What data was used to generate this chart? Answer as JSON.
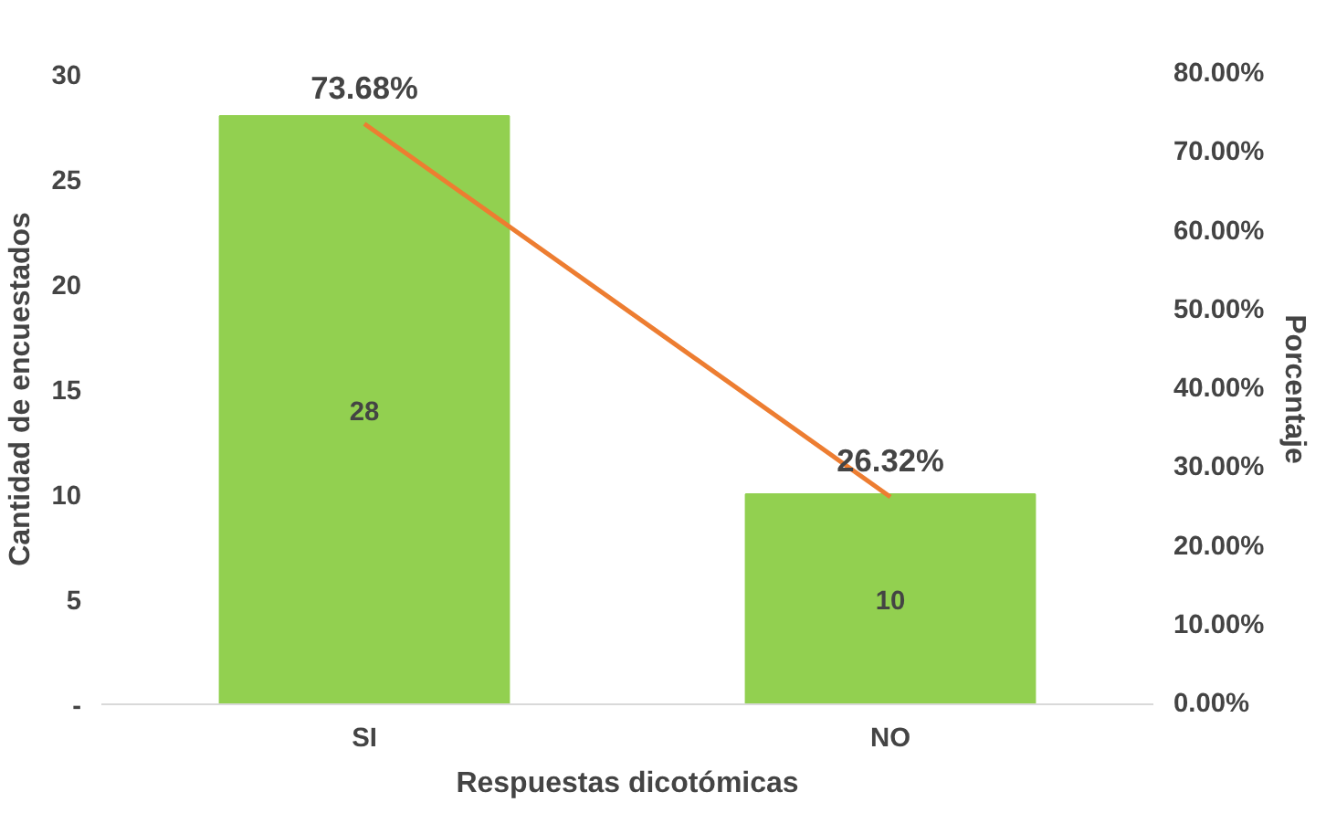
{
  "chart_data": {
    "type": "bar",
    "categories": [
      "SI",
      "NO"
    ],
    "xlabel": "Respuestas dicotómicas",
    "ylabel": "Cantidad de encuestados",
    "y2label": "Porcentaje",
    "series": [
      {
        "color": "#92d050",
        "values": [
          28,
          10
        ],
        "value_labels": [
          "28",
          "10"
        ]
      },
      {
        "type": "line",
        "axis": "y2",
        "color": "#ed7d31",
        "values": [
          73.68,
          26.32
        ],
        "value_labels": [
          "73.68%",
          "26.32%"
        ]
      }
    ],
    "ylim": [
      0,
      30
    ],
    "yticks": [
      {
        "value": 0,
        "label": "-"
      },
      5,
      10,
      15,
      20,
      25,
      30
    ],
    "y2lim": [
      0,
      80
    ],
    "y2ticks": [
      {
        "value": 0,
        "label": "0.00%"
      },
      {
        "value": 10,
        "label": "10.00%"
      },
      {
        "value": 20,
        "label": "20.00%"
      },
      {
        "value": 30,
        "label": "30.00%"
      },
      {
        "value": 40,
        "label": "40.00%"
      },
      {
        "value": 50,
        "label": "50.00%"
      },
      {
        "value": 60,
        "label": "60.00%"
      },
      {
        "value": 70,
        "label": "70.00%"
      },
      {
        "value": 80,
        "label": "80.00%"
      }
    ],
    "grid": false
  }
}
